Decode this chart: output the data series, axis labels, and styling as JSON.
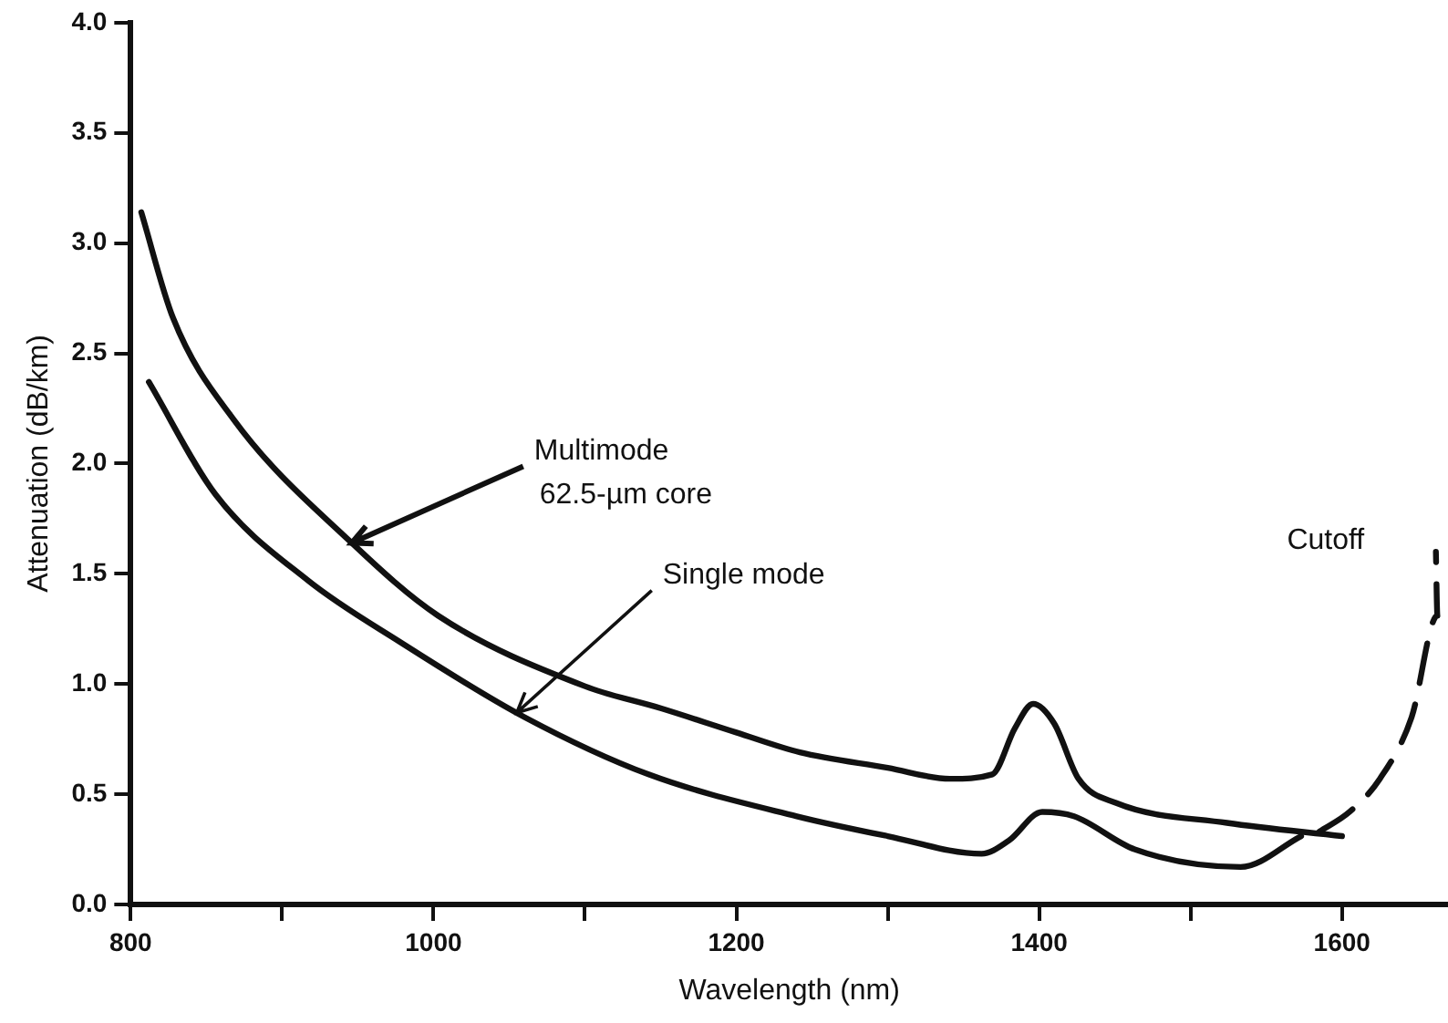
{
  "chart_data": {
    "type": "line",
    "xlabel": "Wavelength (nm)",
    "ylabel": "Attenuation (dB/km)",
    "xlim": [
      800,
      1670
    ],
    "ylim": [
      0,
      4
    ],
    "xticks": [
      800,
      {
        "value": 900,
        "label": null
      },
      1000,
      {
        "value": 1100,
        "label": null
      },
      1200,
      {
        "value": 1300,
        "label": null
      },
      1400,
      {
        "value": 1500,
        "label": null
      },
      1600
    ],
    "yticks": [
      {
        "value": 0,
        "label": "0.0"
      },
      0.5,
      {
        "value": 1,
        "label": "1.0"
      },
      1.5,
      {
        "value": 2,
        "label": "2.0"
      },
      2.5,
      {
        "value": 3,
        "label": "3.0"
      },
      3.5,
      {
        "value": 4,
        "label": "4.0"
      }
    ],
    "grid": false,
    "legend": false,
    "marker": "none",
    "series": [
      {
        "color": "#111111",
        "line_style": "solid",
        "x": [
          807,
          828,
          868,
          946,
          1003,
          1100,
          1150,
          1200,
          1242,
          1300,
          1341,
          1369,
          1384,
          1396,
          1410,
          1426,
          1451,
          1524,
          1600
        ],
        "values": [
          3.14,
          2.66,
          2.2,
          1.64,
          1.31,
          0.99,
          0.89,
          0.78,
          0.69,
          0.62,
          0.57,
          0.59,
          0.8,
          0.91,
          0.82,
          0.57,
          0.46,
          0.37,
          0.31
        ]
      },
      {
        "color": "#111111",
        "line_style": "solid",
        "x": [
          812,
          856,
          917,
          978,
          1060,
          1142,
          1240,
          1300,
          1362,
          1380,
          1402,
          1423,
          1463,
          1533,
          1573
        ],
        "values": [
          2.37,
          1.86,
          1.47,
          1.19,
          0.85,
          0.59,
          0.4,
          0.31,
          0.23,
          0.29,
          0.42,
          0.4,
          0.25,
          0.17,
          0.31
        ]
      },
      {
        "color": "#111111",
        "line_style": "dashed",
        "x": [
          1585,
          1605,
          1625,
          1646,
          1663,
          1662
        ],
        "values": [
          0.33,
          0.42,
          0.57,
          0.85,
          1.31,
          1.6
        ]
      }
    ],
    "annotations": [
      {
        "text": "Multimode\n62.5-µm core",
        "x": 946,
        "y": 1.64
      },
      {
        "text": "Single mode",
        "x": 1055,
        "y": 0.87
      },
      {
        "text": "Cutoff",
        "x": 1660,
        "y": 1.5
      }
    ]
  }
}
